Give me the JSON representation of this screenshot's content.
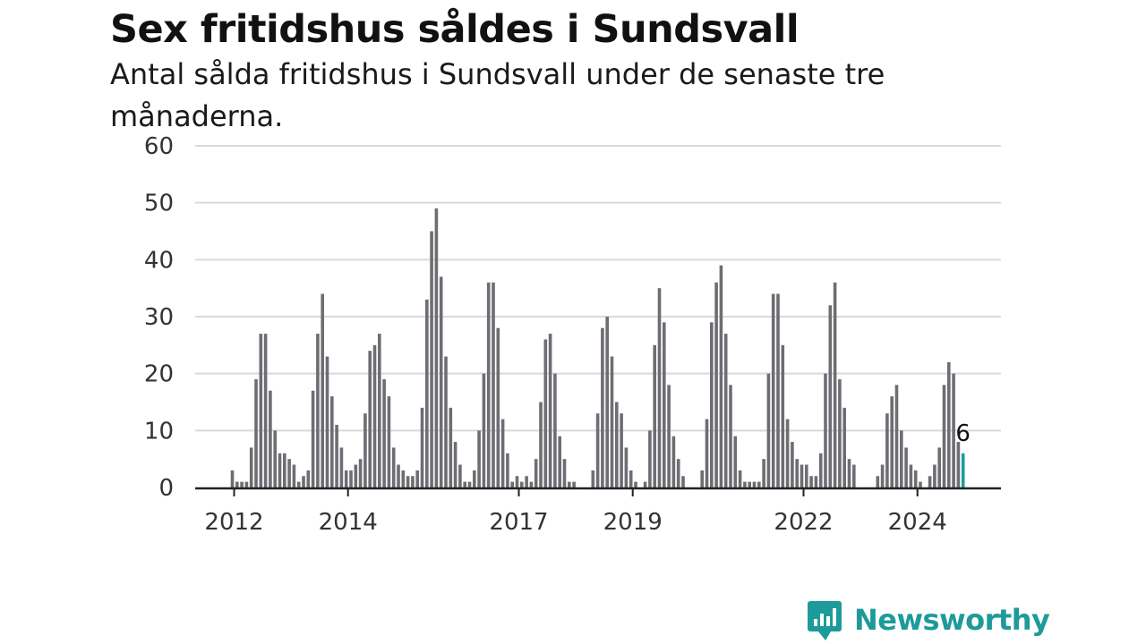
{
  "title": "Sex fritidshus såldes i Sundsvall",
  "subtitle": "Antal sålda fritidshus i Sundsvall under de senaste tre månaderna.",
  "brand": {
    "name": "Newsworthy",
    "icon": "newsworthy-logo-icon",
    "color": "#1e9a9a"
  },
  "colors": {
    "bar": "#6e6d73",
    "highlight": "#1a9e9b",
    "grid": "#d9d9d9",
    "axis": "#222222"
  },
  "chart_data": {
    "type": "bar",
    "title": "Sex fritidshus såldes i Sundsvall",
    "subtitle": "Antal sålda fritidshus i Sundsvall under de senaste tre månaderna.",
    "xlabel": "",
    "ylabel": "",
    "ylim": [
      0,
      60
    ],
    "yticks": [
      0,
      10,
      20,
      30,
      40,
      50,
      60
    ],
    "xtick_labels": [
      "2012",
      "2014",
      "2017",
      "2019",
      "2022",
      "2024"
    ],
    "grid": true,
    "series": [
      {
        "values": [
          3,
          1,
          1,
          1,
          7,
          19,
          27,
          27,
          17,
          10,
          6,
          6,
          5,
          4,
          1,
          2,
          3,
          17,
          27,
          34,
          23,
          16,
          11,
          7,
          3,
          3,
          4,
          5,
          13,
          24,
          25,
          27,
          19,
          16,
          7,
          4,
          3,
          2,
          2,
          3,
          14,
          33,
          45,
          49,
          37,
          23,
          14,
          8,
          4,
          1,
          1,
          3,
          10,
          20,
          36,
          36,
          28,
          12,
          6,
          1,
          2,
          1,
          2,
          1,
          5,
          15,
          26,
          27,
          20,
          9,
          5,
          1,
          1,
          0,
          0,
          0,
          3,
          13,
          28,
          30,
          23,
          15,
          13,
          7,
          3,
          1,
          0,
          1,
          10,
          25,
          35,
          29,
          18,
          9,
          5,
          2,
          0,
          0,
          0,
          3,
          12,
          29,
          36,
          39,
          27,
          18,
          9,
          3,
          1,
          1,
          1,
          1,
          5,
          20,
          34,
          34,
          25,
          12,
          8,
          5,
          4,
          4,
          2,
          2,
          6,
          20,
          32,
          36,
          19,
          14,
          5,
          4,
          0,
          0,
          0,
          0,
          2,
          4,
          13,
          16,
          18,
          10,
          7,
          4,
          3,
          1,
          0,
          2,
          4,
          7,
          18,
          22,
          20,
          8,
          6
        ]
      }
    ],
    "highlight_last": true,
    "annotations": [
      {
        "text": "6"
      }
    ]
  }
}
